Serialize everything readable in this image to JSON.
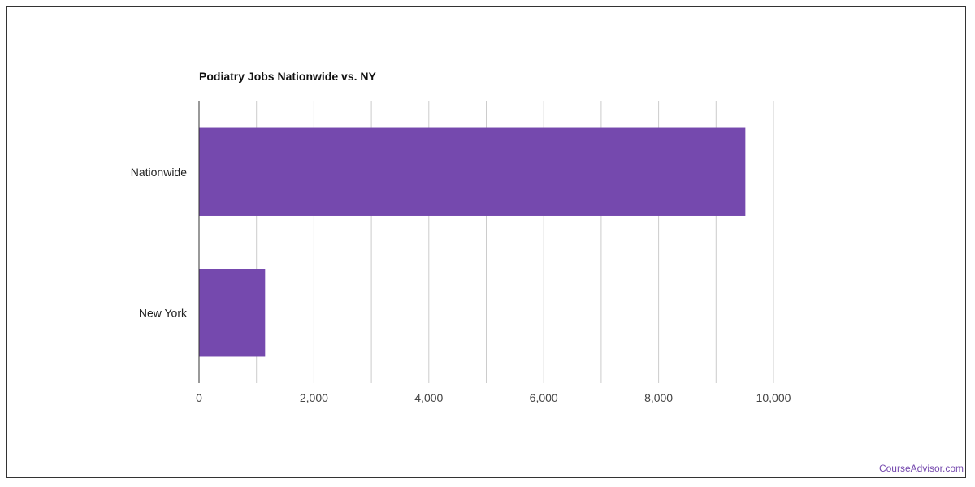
{
  "title": "Podiatry Jobs Nationwide vs. NY",
  "watermark": "CourseAdvisor.com",
  "colors": {
    "bar": "#7549AE",
    "grid": "#cccccc",
    "axis": "#333333",
    "watermark": "#7549AE"
  },
  "chart_data": {
    "type": "bar",
    "orientation": "horizontal",
    "title": "Podiatry Jobs Nationwide vs. NY",
    "categories": [
      "Nationwide",
      "New York"
    ],
    "values": [
      9510,
      1150
    ],
    "xlim": [
      0,
      10000
    ],
    "x_ticks": [
      0,
      2000,
      4000,
      6000,
      8000,
      10000
    ],
    "x_tick_labels": [
      "0",
      "2,000",
      "4,000",
      "6,000",
      "8,000",
      "10,000"
    ],
    "xlabel": "",
    "ylabel": "",
    "grid": true,
    "legend": "none"
  }
}
